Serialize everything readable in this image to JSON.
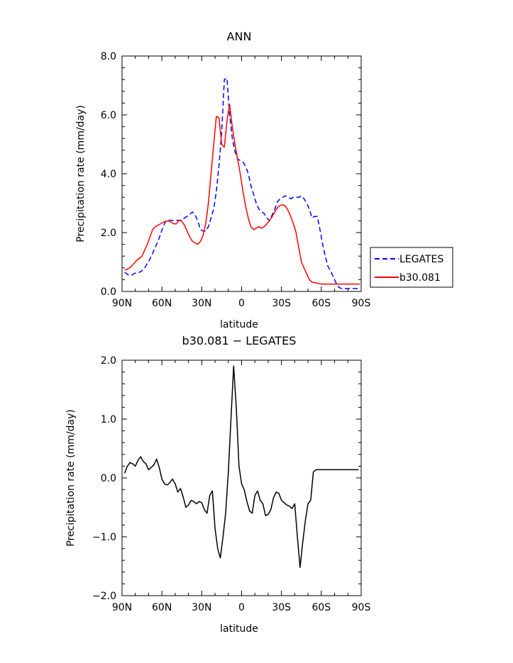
{
  "chart_data": [
    {
      "type": "line",
      "title": "ANN",
      "xlabel": "latitude",
      "ylabel": "Precipitation rate (mm/day)",
      "xlim": [
        90,
        -90
      ],
      "ylim": [
        0,
        8
      ],
      "xticks": [
        {
          "v": 90,
          "label": "90N"
        },
        {
          "v": 60,
          "label": "60N"
        },
        {
          "v": 30,
          "label": "30N"
        },
        {
          "v": 0,
          "label": "0"
        },
        {
          "v": -30,
          "label": "30S"
        },
        {
          "v": -60,
          "label": "60S"
        },
        {
          "v": -90,
          "label": "90S"
        }
      ],
      "yticks": [
        {
          "v": 0,
          "label": "0.0"
        },
        {
          "v": 2,
          "label": "2.0"
        },
        {
          "v": 4,
          "label": "4.0"
        },
        {
          "v": 6,
          "label": "6.0"
        },
        {
          "v": 8,
          "label": "8.0"
        }
      ],
      "legend": "outside-right",
      "series": [
        {
          "name": "LEGATES",
          "color": "#0000ff",
          "dash": "dashed",
          "x": [
            88,
            85,
            83,
            81,
            79,
            77,
            75,
            73,
            71,
            69,
            67,
            65,
            63,
            61,
            59,
            57,
            55,
            53,
            51,
            49,
            47,
            45,
            43,
            41,
            39,
            37,
            35,
            33,
            31,
            29,
            27,
            25,
            23,
            21,
            19,
            17,
            15,
            13,
            11,
            9,
            7,
            5,
            3,
            1,
            -1,
            -3,
            -5,
            -7,
            -9,
            -11,
            -13,
            -15,
            -17,
            -19,
            -21,
            -23,
            -25,
            -27,
            -29,
            -31,
            -33,
            -35,
            -37,
            -39,
            -41,
            -43,
            -45,
            -47,
            -49,
            -51,
            -53,
            -55,
            -57,
            -59,
            -61,
            -63,
            -65,
            -67,
            -69,
            -71,
            -73,
            -75,
            -77,
            -79,
            -81,
            -83,
            -85,
            -87,
            -89
          ],
          "y": [
            0.65,
            0.55,
            0.55,
            0.6,
            0.65,
            0.65,
            0.7,
            0.8,
            0.95,
            1.1,
            1.3,
            1.5,
            1.7,
            1.95,
            2.2,
            2.4,
            2.42,
            2.42,
            2.4,
            2.42,
            2.42,
            2.42,
            2.5,
            2.55,
            2.62,
            2.7,
            2.6,
            2.4,
            2.1,
            2.05,
            2.05,
            2.2,
            2.5,
            2.8,
            3.4,
            4.3,
            5.4,
            7.2,
            7.25,
            6.0,
            5.2,
            4.75,
            4.5,
            4.45,
            4.4,
            4.25,
            4.0,
            3.6,
            3.3,
            3.0,
            2.8,
            2.7,
            2.65,
            2.5,
            2.4,
            2.6,
            2.8,
            3.05,
            3.15,
            3.2,
            3.25,
            3.2,
            3.15,
            3.2,
            3.2,
            3.2,
            3.25,
            3.15,
            3.0,
            2.8,
            2.5,
            2.55,
            2.55,
            2.1,
            1.6,
            1.2,
            0.85,
            0.7,
            0.5,
            0.3,
            0.15,
            0.1,
            0.1,
            0.1,
            0.1,
            0.1,
            0.1,
            0.1,
            0.1
          ]
        },
        {
          "name": "b30.081",
          "color": "#ff0000",
          "dash": "solid",
          "x": [
            88,
            85,
            83,
            81,
            79,
            77,
            75,
            73,
            71,
            69,
            67,
            65,
            63,
            61,
            59,
            57,
            55,
            53,
            51,
            49,
            47,
            45,
            43,
            41,
            39,
            37,
            35,
            33,
            31,
            29,
            27,
            25,
            23,
            21,
            19,
            17,
            15,
            13,
            11,
            9,
            7,
            5,
            3,
            1,
            -1,
            -3,
            -5,
            -7,
            -9,
            -11,
            -13,
            -15,
            -17,
            -19,
            -21,
            -23,
            -25,
            -27,
            -29,
            -31,
            -33,
            -35,
            -37,
            -39,
            -41,
            -43,
            -45,
            -47,
            -49,
            -51,
            -53,
            -55,
            -57,
            -59,
            -61,
            -63,
            -65,
            -67,
            -69,
            -71,
            -73,
            -75,
            -77,
            -79,
            -81,
            -83,
            -85,
            -87,
            -89
          ],
          "y": [
            0.72,
            0.78,
            0.85,
            0.95,
            1.05,
            1.12,
            1.2,
            1.4,
            1.6,
            1.85,
            2.1,
            2.2,
            2.25,
            2.3,
            2.35,
            2.38,
            2.4,
            2.35,
            2.3,
            2.3,
            2.42,
            2.38,
            2.25,
            2.05,
            1.85,
            1.7,
            1.65,
            1.6,
            1.7,
            1.9,
            2.3,
            3.0,
            4.0,
            5.0,
            5.95,
            5.9,
            5.0,
            4.9,
            5.8,
            6.35,
            5.6,
            5.0,
            4.5,
            4.0,
            3.4,
            2.9,
            2.5,
            2.2,
            2.1,
            2.15,
            2.2,
            2.15,
            2.2,
            2.3,
            2.4,
            2.55,
            2.7,
            2.85,
            2.92,
            2.95,
            2.9,
            2.75,
            2.55,
            2.3,
            2.0,
            1.5,
            1.0,
            0.8,
            0.6,
            0.4,
            0.32,
            0.3,
            0.28,
            0.26,
            0.25,
            0.25,
            0.25,
            0.25,
            0.25,
            0.25,
            0.25,
            0.25,
            0.25,
            0.25,
            0.25,
            0.25,
            0.25,
            0.25,
            0.25
          ]
        }
      ]
    },
    {
      "type": "line",
      "title": "b30.081 − LEGATES",
      "xlabel": "latitude",
      "ylabel": "Precipitation rate (mm/day)",
      "xlim": [
        90,
        -90
      ],
      "ylim": [
        -2,
        2
      ],
      "xticks": [
        {
          "v": 90,
          "label": "90N"
        },
        {
          "v": 60,
          "label": "60N"
        },
        {
          "v": 30,
          "label": "30N"
        },
        {
          "v": 0,
          "label": "0"
        },
        {
          "v": -30,
          "label": "30S"
        },
        {
          "v": -60,
          "label": "60S"
        },
        {
          "v": -90,
          "label": "90S"
        }
      ],
      "yticks": [
        {
          "v": -2,
          "label": "−2.0"
        },
        {
          "v": -1,
          "label": "−1.0"
        },
        {
          "v": 0,
          "label": "0.0"
        },
        {
          "v": 1,
          "label": "1.0"
        },
        {
          "v": 2,
          "label": "2.0"
        }
      ],
      "series": [
        {
          "name": "",
          "color": "#000000",
          "dash": "solid",
          "x": [
            88,
            86,
            84,
            82,
            80,
            78,
            76,
            74,
            72,
            70,
            68,
            66,
            64,
            62,
            60,
            58,
            56,
            54,
            52,
            50,
            48,
            46,
            44,
            42,
            40,
            38,
            36,
            34,
            32,
            30,
            28,
            26,
            24,
            22,
            20,
            18,
            16,
            14,
            12,
            10,
            8,
            6,
            4,
            2,
            0,
            -2,
            -4,
            -6,
            -8,
            -10,
            -12,
            -14,
            -16,
            -18,
            -20,
            -22,
            -24,
            -26,
            -28,
            -30,
            -32,
            -34,
            -36,
            -38,
            -40,
            -42,
            -44,
            -46,
            -48,
            -50,
            -52,
            -54,
            -56,
            -58,
            -60,
            -62,
            -64,
            -66,
            -68,
            -70,
            -72,
            -74,
            -76,
            -78,
            -80,
            -82,
            -84,
            -86,
            -88
          ],
          "y": [
            0.08,
            0.2,
            0.26,
            0.24,
            0.2,
            0.3,
            0.36,
            0.28,
            0.24,
            0.14,
            0.18,
            0.22,
            0.32,
            0.18,
            -0.02,
            -0.1,
            -0.12,
            -0.08,
            -0.02,
            -0.1,
            -0.24,
            -0.18,
            -0.32,
            -0.5,
            -0.46,
            -0.38,
            -0.4,
            -0.44,
            -0.4,
            -0.42,
            -0.54,
            -0.6,
            -0.3,
            -0.22,
            -0.86,
            -1.2,
            -1.36,
            -1.0,
            -0.6,
            0.1,
            1.0,
            1.9,
            1.2,
            0.2,
            -0.1,
            -0.2,
            -0.4,
            -0.56,
            -0.6,
            -0.3,
            -0.22,
            -0.38,
            -0.44,
            -0.64,
            -0.62,
            -0.54,
            -0.34,
            -0.24,
            -0.26,
            -0.38,
            -0.42,
            -0.46,
            -0.48,
            -0.52,
            -0.44,
            -1.0,
            -1.52,
            -1.1,
            -0.72,
            -0.44,
            -0.38,
            0.1,
            0.14,
            0.14,
            0.14,
            0.14,
            0.14,
            0.14,
            0.14,
            0.14,
            0.14,
            0.14,
            0.14,
            0.14,
            0.14,
            0.14,
            0.14,
            0.14,
            0.14
          ]
        }
      ]
    }
  ]
}
